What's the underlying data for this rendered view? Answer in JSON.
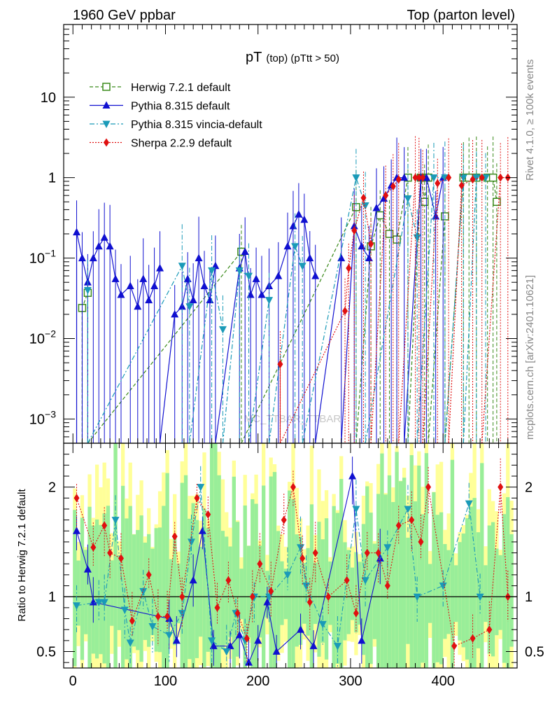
{
  "header": {
    "left": "1960 GeV ppbar",
    "right": "Top (parton level)"
  },
  "side_labels": {
    "top": "Rivet 4.1.0, ≥ 100k events",
    "bottom": "mcplots.cern.ch [arXiv:2401.10621]"
  },
  "watermark": "MC_TTBAR_TTBAR",
  "chart_data": {
    "type": "line",
    "title": "pT",
    "title_sub": "(top) (pTtt > 50)",
    "xlim": [
      -10,
      480
    ],
    "ylim": [
      0.0005,
      80
    ],
    "yscale": "log",
    "x_ticks": [
      "0",
      "100",
      "200",
      "300",
      "400"
    ],
    "y_ticks": [
      {
        "value": 10,
        "label": "10"
      },
      {
        "value": 1,
        "label": "1"
      },
      {
        "value": 0.1,
        "label": "10−1"
      },
      {
        "value": 0.01,
        "label": "10−2"
      },
      {
        "value": 0.001,
        "label": "10−3"
      }
    ],
    "ratio": {
      "ylabel": "Ratio to Herwig 7.2.1 default",
      "ylim": [
        0.35,
        2.4
      ],
      "y_ticks": [
        {
          "value": 2,
          "label": "2"
        },
        {
          "value": 1,
          "label": "1"
        },
        {
          "value": 0.5,
          "label": "0.5"
        }
      ]
    },
    "series": [
      {
        "name": "Herwig 7.2.1 default",
        "color": "#3a8a1a",
        "marker": "square-open",
        "x": [
          10,
          16,
          182,
          306,
          322,
          332,
          342,
          350,
          362,
          376,
          380,
          384,
          402,
          422,
          428,
          436,
          448,
          454,
          458
        ],
        "values": [
          0.024,
          0.037,
          0.12,
          0.43,
          0.14,
          0.34,
          0.2,
          0.17,
          1.0,
          1.0,
          0.5,
          1.0,
          0.33,
          1.0,
          1.0,
          1.0,
          1.0,
          1.0,
          0.5
        ]
      },
      {
        "name": "Pythia 8.315 default",
        "color": "#1010d0",
        "marker": "triangle-up",
        "x": [
          4,
          10,
          16,
          22,
          28,
          34,
          40,
          46,
          52,
          62,
          70,
          76,
          82,
          88,
          94,
          110,
          118,
          124,
          130,
          136,
          142,
          148,
          154,
          180,
          186,
          192,
          198,
          204,
          212,
          222,
          232,
          238,
          244,
          250,
          256,
          262,
          290,
          304,
          312,
          320,
          328,
          336,
          344,
          350,
          358,
          376,
          382,
          392,
          400
        ],
        "values": [
          0.21,
          0.1,
          0.05,
          0.1,
          0.14,
          0.18,
          0.14,
          0.055,
          0.035,
          0.045,
          0.025,
          0.055,
          0.03,
          0.045,
          0.075,
          0.02,
          0.025,
          0.055,
          0.03,
          0.1,
          0.045,
          0.03,
          0.08,
          0.075,
          0.12,
          0.035,
          0.055,
          0.035,
          0.045,
          0.06,
          0.14,
          0.25,
          0.35,
          0.3,
          0.1,
          0.06,
          0.1,
          0.25,
          0.14,
          0.1,
          0.42,
          0.55,
          0.8,
          1.0,
          1.0,
          1.0,
          1.0,
          0.33,
          1.0
        ]
      },
      {
        "name": "Pythia 8.315 vincia-default",
        "color": "#1a9ab8",
        "marker": "triangle-down",
        "x": [
          16,
          118,
          126,
          150,
          162,
          180,
          190,
          212,
          240,
          248,
          306,
          316,
          362,
          372,
          390,
          402,
          422,
          436,
          446
        ],
        "values": [
          0.04,
          0.08,
          0.025,
          0.07,
          0.013,
          0.07,
          0.06,
          0.03,
          0.14,
          0.08,
          1.0,
          0.45,
          0.55,
          0.18,
          1.0,
          1.0,
          1.0,
          1.0,
          1.0
        ]
      },
      {
        "name": "Sherpa 2.2.9 default",
        "color": "#e01010",
        "marker": "diamond",
        "x": [
          224,
          294,
          298,
          304,
          314,
          322,
          338,
          346,
          352,
          370,
          374,
          378,
          394,
          406,
          420,
          432,
          442,
          462,
          470
        ],
        "values": [
          0.0048,
          0.022,
          0.075,
          0.22,
          0.56,
          0.15,
          0.6,
          0.78,
          0.95,
          1.0,
          1.0,
          1.0,
          0.85,
          1.0,
          0.8,
          0.95,
          1.0,
          1.0,
          1.0
        ]
      }
    ],
    "ratio_series": [
      {
        "name": "Pythia 8.315 default",
        "x": [
          4,
          16,
          22,
          104,
          112,
          130,
          140,
          152,
          170,
          180,
          190,
          200,
          210,
          220,
          246,
          260,
          302,
          312,
          332
        ],
        "values": [
          1.6,
          1.25,
          0.95,
          0.8,
          0.6,
          1.15,
          1.6,
          0.55,
          0.55,
          0.65,
          0.4,
          0.6,
          0.95,
          0.5,
          0.7,
          0.55,
          2.1,
          0.6,
          1.35
        ]
      },
      {
        "name": "Pythia 8.315 vincia-default",
        "x": [
          4,
          28,
          34,
          46,
          56,
          62,
          76,
          86,
          104,
          118,
          128,
          138,
          150,
          166,
          176,
          186,
          196,
          212,
          232,
          246,
          252,
          270,
          286,
          306,
          316,
          340,
          362,
          372,
          400,
          428,
          440
        ],
        "values": [
          0.92,
          0.95,
          0.95,
          1.7,
          0.88,
          0.58,
          1.05,
          0.73,
          0.65,
          0.85,
          1.5,
          2.0,
          0.6,
          0.5,
          0.85,
          0.6,
          1.0,
          1.0,
          1.2,
          1.45,
          1.1,
          0.75,
          0.55,
          1.8,
          1.15,
          1.45,
          1.8,
          1.0,
          1.1,
          1.85,
          1.0
        ]
      },
      {
        "name": "Sherpa 2.2.9 default",
        "x": [
          4,
          22,
          34,
          40,
          52,
          64,
          82,
          92,
          102,
          110,
          118,
          134,
          146,
          156,
          168,
          178,
          188,
          194,
          202,
          214,
          228,
          238,
          248,
          256,
          262,
          276,
          296,
          306,
          318,
          330,
          340,
          352,
          366,
          376,
          384,
          412,
          432,
          450,
          462,
          470
        ],
        "values": [
          1.9,
          1.45,
          1.65,
          1.4,
          1.35,
          0.78,
          1.2,
          0.82,
          0.82,
          1.55,
          1.0,
          1.9,
          1.75,
          0.9,
          1.15,
          0.85,
          0.62,
          1.0,
          1.3,
          1.05,
          1.7,
          2.0,
          1.35,
          0.95,
          1.4,
          1.0,
          1.15,
          0.85,
          1.4,
          1.4,
          1.1,
          1.65,
          1.7,
          1.5,
          2.0,
          0.55,
          0.62,
          0.7,
          2.0,
          1.0
        ]
      }
    ]
  }
}
